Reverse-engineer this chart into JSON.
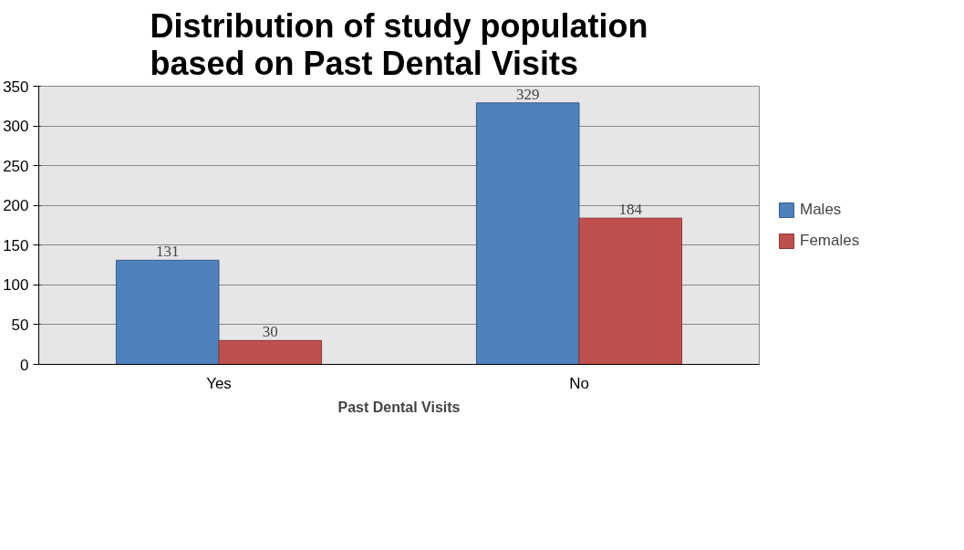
{
  "chart_data": {
    "type": "bar",
    "title": "Distribution of study population based on Past Dental Visits",
    "xlabel": "Past Dental Visits",
    "categories": [
      "Yes",
      "No"
    ],
    "series": [
      {
        "name": "Males",
        "color": "#4f81bd",
        "values": [
          131,
          329
        ]
      },
      {
        "name": "Females",
        "color": "#c0504d",
        "values": [
          30,
          184
        ]
      }
    ],
    "ylim": [
      0,
      350
    ],
    "yticks": [
      0,
      50,
      100,
      150,
      200,
      250,
      300,
      350
    ],
    "grid": "y",
    "legend": "right",
    "data_labels": true
  }
}
